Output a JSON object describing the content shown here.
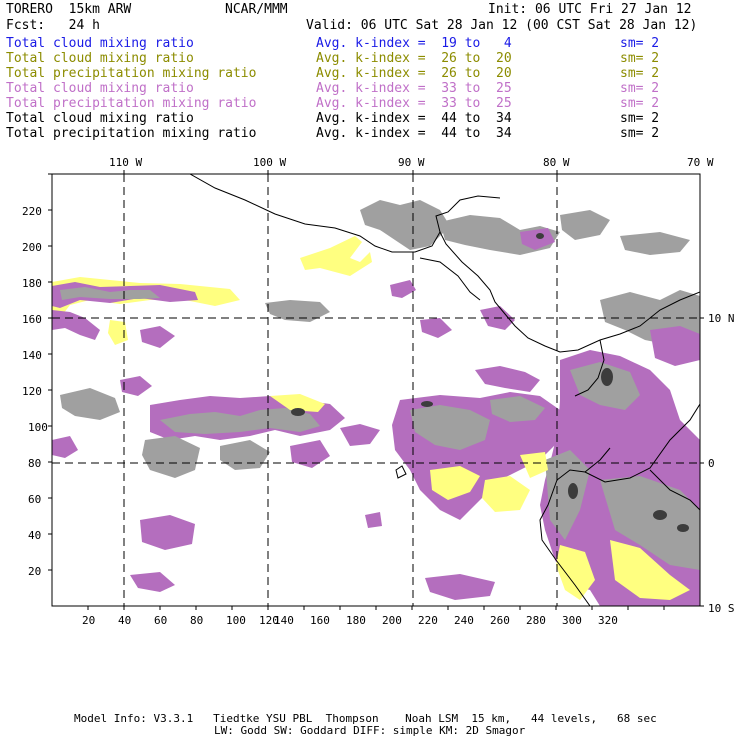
{
  "header": {
    "model_name": "TORERO  15km ARW",
    "org": "NCAR/MMM",
    "init": "Init: 06 UTC Fri 27 Jan 12",
    "fcst": "Fcst:   24 h",
    "valid": "Valid: 06 UTC Sat 28 Jan 12 (00 CST Sat 28 Jan 12)"
  },
  "legend": [
    {
      "field": "Total cloud mixing ratio",
      "kindex": "Avg. k-index =  19 to   4",
      "sm": "sm= 2",
      "color": "#1a1ae6"
    },
    {
      "field": "Total cloud mixing ratio",
      "kindex": "Avg. k-index =  26 to  20",
      "sm": "sm= 2",
      "color": "#8c8c00"
    },
    {
      "field": "Total precipitation mixing ratio",
      "kindex": "Avg. k-index =  26 to  20",
      "sm": "sm= 2",
      "color": "#8c8c00"
    },
    {
      "field": "Total cloud mixing ratio",
      "kindex": "Avg. k-index =  33 to  25",
      "sm": "sm= 2",
      "color": "#c070c8"
    },
    {
      "field": "Total precipitation mixing ratio",
      "kindex": "Avg. k-index =  33 to  25",
      "sm": "sm= 2",
      "color": "#c070c8"
    },
    {
      "field": "Total cloud mixing ratio",
      "kindex": "Avg. k-index =  44 to  34",
      "sm": "sm= 2",
      "color": "#000000"
    },
    {
      "field": "Total precipitation mixing ratio",
      "kindex": "Avg. k-index =  44 to  34",
      "sm": "sm= 2",
      "color": "#000000"
    }
  ],
  "axes": {
    "top_ticks": [
      "110 W",
      "100 W",
      "90 W",
      "80 W",
      "70 W"
    ],
    "right_ticks": [
      "10 N",
      "0",
      "10 S"
    ],
    "bottom_ticks": [
      "20",
      "40",
      "60",
      "80",
      "100",
      "120",
      "140",
      "160",
      "180",
      "200",
      "220",
      "240",
      "260",
      "280",
      "300",
      "320"
    ],
    "left_ticks": [
      "20",
      "40",
      "60",
      "80",
      "100",
      "120",
      "140",
      "160",
      "180",
      "200",
      "220"
    ]
  },
  "footer": {
    "line1": "Model Info: V3.3.1   Tiedtke YSU PBL  Thompson    Noah LSM  15 km,   44 levels,   68 sec",
    "line2": "LW: Godd SW: Goddard DIFF: simple KM: 2D Smagor"
  },
  "colors": {
    "purple": "#b46ebe",
    "gray": "#a0a0a0",
    "yellow": "#ffff80",
    "dark": "#3c3c3c"
  }
}
